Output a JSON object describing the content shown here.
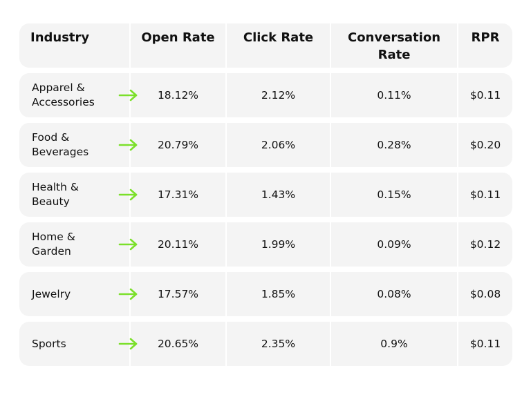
{
  "accent_color": "#7be02a",
  "header": {
    "industry": "Industry",
    "open_rate": "Open Rate",
    "click_rate": "Click Rate",
    "conversation_rate": "Conversation Rate",
    "rpr": "RPR"
  },
  "rows": [
    {
      "industry_line1": "Apparel &",
      "industry_line2": "Accessories",
      "open_rate": "18.12%",
      "click_rate": "2.12%",
      "conversation_rate": "0.11%",
      "rpr": "$0.11"
    },
    {
      "industry_line1": "Food &",
      "industry_line2": "Beverages",
      "open_rate": "20.79%",
      "click_rate": "2.06%",
      "conversation_rate": "0.28%",
      "rpr": "$0.20"
    },
    {
      "industry_line1": "Health &",
      "industry_line2": "Beauty",
      "open_rate": "17.31%",
      "click_rate": "1.43%",
      "conversation_rate": "0.15%",
      "rpr": "$0.11"
    },
    {
      "industry_line1": "Home &",
      "industry_line2": "Garden",
      "open_rate": "20.11%",
      "click_rate": "1.99%",
      "conversation_rate": "0.09%",
      "rpr": "$0.12"
    },
    {
      "industry_line1": "Jewelry",
      "industry_line2": "",
      "open_rate": "17.57%",
      "click_rate": "1.85%",
      "conversation_rate": "0.08%",
      "rpr": "$0.08"
    },
    {
      "industry_line1": "Sports",
      "industry_line2": "",
      "open_rate": "20.65%",
      "click_rate": "2.35%",
      "conversation_rate": "0.9%",
      "rpr": "$0.11"
    }
  ]
}
